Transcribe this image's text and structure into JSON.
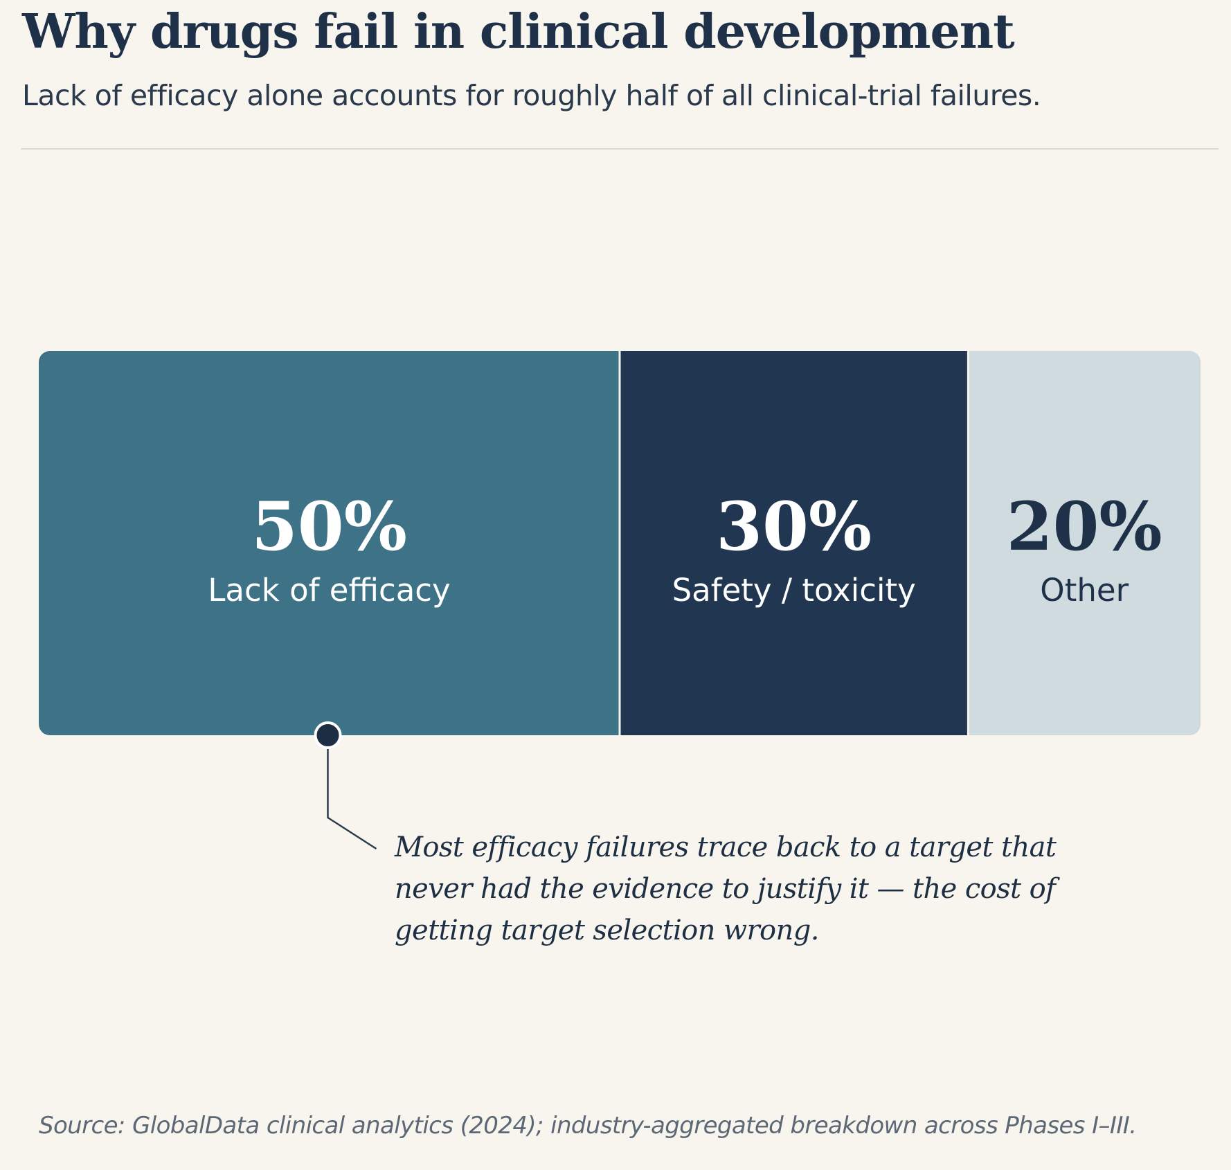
{
  "title": "Why drugs fail in clinical development",
  "subtitle": "Lack of efficacy alone accounts for roughly half of all clinical-trial failures.",
  "annotation": "Most efficacy failures trace back to a target that never had the evidence to justify it — the cost of getting target selection wrong.",
  "source": "Source: GlobalData clinical analytics (2024); industry-aggregated breakdown across Phases I–III.",
  "chart_data": {
    "type": "bar",
    "orientation": "horizontal-stacked",
    "categories": [
      "Lack of efficacy",
      "Safety / toxicity",
      "Other"
    ],
    "values": [
      50,
      30,
      20
    ],
    "value_labels": [
      "50%",
      "30%",
      "20%"
    ],
    "unit": "%",
    "total": 100,
    "colors": [
      "#3e7387",
      "#213751",
      "#cfdbdf"
    ],
    "text_colors": [
      "#ffffff",
      "#ffffff",
      "#1e3148"
    ],
    "annotated_segment": "Lack of efficacy",
    "grid": false,
    "legend": "none"
  }
}
